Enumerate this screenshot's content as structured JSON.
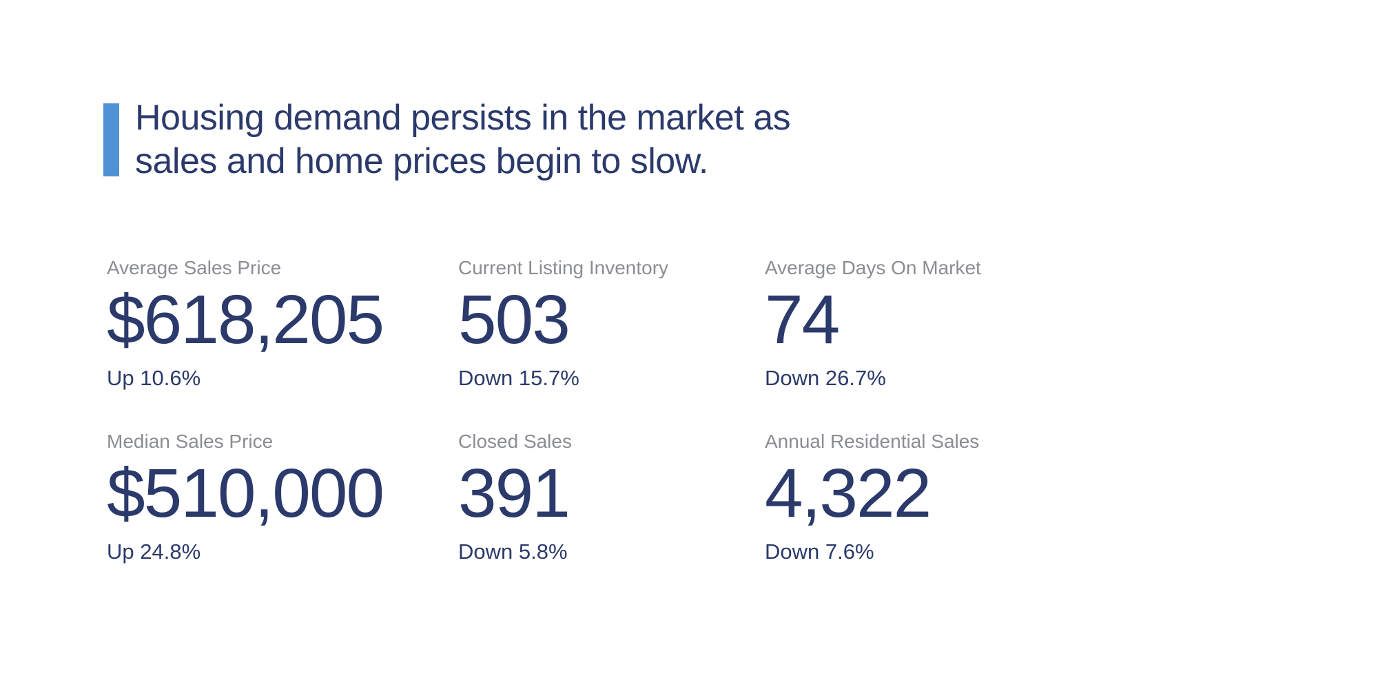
{
  "headline": {
    "line1": "Housing demand persists in the market as",
    "line2": "sales and home prices begin to slow."
  },
  "stats": [
    {
      "label": "Average Sales Price",
      "value": "$618,205",
      "change": "Up 10.6%"
    },
    {
      "label": "Current Listing Inventory",
      "value": "503",
      "change": "Down 15.7%"
    },
    {
      "label": "Average Days On Market",
      "value": "74",
      "change": "Down 26.7%"
    },
    {
      "label": "Median Sales Price",
      "value": "$510,000",
      "change": "Up 24.8%"
    },
    {
      "label": "Closed Sales",
      "value": "391",
      "change": "Down 5.8%"
    },
    {
      "label": "Annual Residential Sales",
      "value": "4,322",
      "change": "Down 7.6%"
    }
  ],
  "colors": {
    "accent_blue": "#4E91D4",
    "navy_text": "#2B3A6B",
    "label_gray": "#8A8D91",
    "background": "#FFFFFF"
  }
}
